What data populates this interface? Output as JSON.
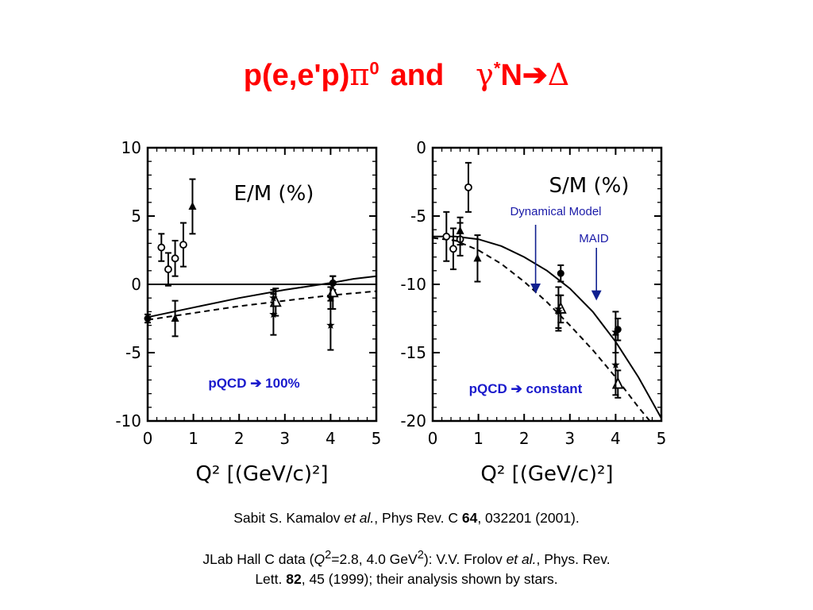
{
  "title": {
    "part1": "p(e,e'p)",
    "pi": "π",
    "zero": "0",
    "and": "and",
    "gamma": "γ",
    "star": "*",
    "N": "N",
    "arrow": "➔",
    "delta": "Δ"
  },
  "chart_data": [
    {
      "type": "scatter",
      "title": "E/M (%)",
      "xlabel": "Q² [(GeV/c)²]",
      "ylabel": "",
      "xlim": [
        0,
        5
      ],
      "ylim": [
        -10,
        10
      ],
      "x_ticks": [
        "0",
        "1",
        "2",
        "3",
        "4",
        "5"
      ],
      "y_ticks": [
        "10",
        "5",
        "0",
        "-5",
        "-10"
      ],
      "annotation": {
        "prefix": "pQCD",
        "arrow": "➔",
        "suffix": "100%"
      },
      "series": [
        {
          "marker": "open-circle",
          "points": [
            [
              0.3,
              2.7,
              1.0
            ],
            [
              0.45,
              1.1,
              1.2
            ],
            [
              0.6,
              1.9,
              1.3
            ],
            [
              0.78,
              2.9,
              1.6
            ]
          ]
        },
        {
          "marker": "filled-triangle",
          "points": [
            [
              0.6,
              -2.5,
              1.3
            ],
            [
              0.98,
              5.7,
              2.0
            ]
          ]
        },
        {
          "marker": "filled-circle",
          "points": [
            [
              0.0,
              -2.5,
              0.3
            ],
            [
              4.05,
              0.1,
              0.5
            ]
          ]
        },
        {
          "marker": "open-triangle",
          "points": [
            [
              2.8,
              -1.3,
              1.0
            ],
            [
              4.05,
              -0.6,
              1.2
            ]
          ]
        },
        {
          "marker": "star",
          "points": [
            [
              2.75,
              -1.0,
              0.6
            ],
            [
              2.75,
              -2.2,
              1.5
            ],
            [
              4.0,
              -1.0,
              0.8
            ],
            [
              4.0,
              -3.0,
              1.8
            ]
          ]
        },
        {
          "style": "solid-curve",
          "points": [
            [
              0,
              -2.4
            ],
            [
              1,
              -1.7
            ],
            [
              2,
              -1.0
            ],
            [
              3,
              -0.4
            ],
            [
              4,
              0.1
            ],
            [
              4.5,
              0.4
            ],
            [
              5,
              0.6
            ]
          ]
        },
        {
          "style": "dashed-curve",
          "points": [
            [
              0,
              -2.6
            ],
            [
              1,
              -2.1
            ],
            [
              2,
              -1.6
            ],
            [
              3,
              -1.2
            ],
            [
              4,
              -0.8
            ],
            [
              5,
              -0.5
            ]
          ]
        },
        {
          "style": "reference-line",
          "points": [
            [
              0,
              0
            ],
            [
              5,
              0
            ]
          ]
        }
      ]
    },
    {
      "type": "scatter",
      "title": "S/M (%)",
      "xlabel": "Q² [(GeV/c)²]",
      "ylabel": "",
      "xlim": [
        0,
        5
      ],
      "ylim": [
        -20,
        0
      ],
      "x_ticks": [
        "0",
        "1",
        "2",
        "3",
        "4",
        "5"
      ],
      "y_ticks": [
        "0",
        "-5",
        "-10",
        "-15",
        "-20"
      ],
      "annotation": {
        "prefix": "pQCD",
        "arrow": "➔",
        "suffix": "constant"
      },
      "labels": {
        "dynamical_model": "Dynamical Model",
        "maid": "MAID"
      },
      "label_targets": {
        "dynamical_model": [
          2.25,
          -10.5
        ],
        "maid": [
          3.58,
          -11.0
        ]
      },
      "series": [
        {
          "marker": "open-circle",
          "points": [
            [
              0.3,
              -6.5,
              1.8
            ],
            [
              0.45,
              -7.4,
              1.5
            ],
            [
              0.6,
              -6.7,
              1.2
            ],
            [
              0.78,
              -2.9,
              1.8
            ]
          ]
        },
        {
          "marker": "filled-triangle",
          "points": [
            [
              0.6,
              -6.1,
              1.0
            ],
            [
              0.98,
              -8.1,
              1.7
            ]
          ]
        },
        {
          "marker": "filled-circle",
          "points": [
            [
              2.8,
              -9.2,
              0.6
            ],
            [
              4.05,
              -13.3,
              0.8
            ]
          ]
        },
        {
          "marker": "open-triangle",
          "points": [
            [
              2.8,
              -11.8,
              1.0
            ],
            [
              4.05,
              -17.3,
              1.0
            ]
          ]
        },
        {
          "marker": "star",
          "points": [
            [
              2.75,
              -11.8,
              1.6
            ],
            [
              2.75,
              -12.0,
              1.2
            ],
            [
              4.0,
              -13.5,
              1.5
            ],
            [
              4.0,
              -15.9,
              2.2
            ]
          ]
        },
        {
          "style": "solid-curve",
          "points": [
            [
              0,
              -6.5
            ],
            [
              0.5,
              -6.5
            ],
            [
              1,
              -6.7
            ],
            [
              1.5,
              -7.2
            ],
            [
              2,
              -8.0
            ],
            [
              2.5,
              -9.0
            ],
            [
              3,
              -10.3
            ],
            [
              3.5,
              -12.0
            ],
            [
              4,
              -14.2
            ],
            [
              4.5,
              -16.8
            ],
            [
              5,
              -19.8
            ]
          ]
        },
        {
          "style": "dashed-curve",
          "points": [
            [
              0,
              -6.6
            ],
            [
              0.5,
              -6.8
            ],
            [
              1,
              -7.5
            ],
            [
              1.5,
              -8.5
            ],
            [
              2,
              -9.8
            ],
            [
              2.5,
              -11.3
            ],
            [
              3,
              -13.0
            ],
            [
              3.5,
              -14.8
            ],
            [
              4,
              -16.8
            ],
            [
              4.5,
              -19.0
            ],
            [
              4.75,
              -20.0
            ]
          ]
        }
      ]
    }
  ],
  "citation1": {
    "authors": "Sabit S. Kamalov ",
    "etal": "et al.",
    "journal": ", Phys Rev. C ",
    "volume": "64",
    "rest": ", 032201 (2001)."
  },
  "citation2": {
    "pre": "JLab Hall C data (",
    "Q": "Q",
    "sup": "2",
    "values": "=2.8, 4.0 GeV",
    "sup2": "2",
    "post": "):  V.V. Frolov ",
    "etal": "et al.",
    "journal": ", Phys. Rev.",
    "line2pre": "Lett. ",
    "volume": "82",
    "rest": ", 45 (1999); their analysis shown by stars."
  },
  "colors": {
    "title": "#ff0000",
    "annotation": "#1a1acc",
    "label": "#1a1aa8",
    "arrow": "#102090"
  }
}
